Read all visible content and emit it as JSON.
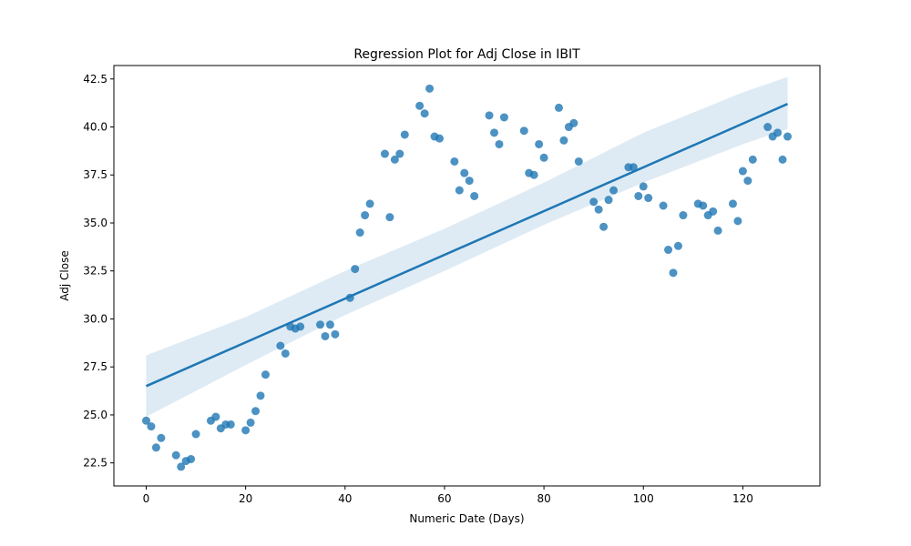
{
  "chart_data": {
    "type": "scatter",
    "title": "Regression Plot for Adj Close in IBIT",
    "xlabel": "Numeric Date (Days)",
    "ylabel": "Adj Close",
    "xlim": [
      -6.5,
      135.5
    ],
    "ylim": [
      21.3,
      43.2
    ],
    "xticks": [
      0,
      20,
      40,
      60,
      80,
      100,
      120
    ],
    "xtick_labels": [
      "0",
      "20",
      "40",
      "60",
      "80",
      "100",
      "120"
    ],
    "yticks": [
      22.5,
      25.0,
      27.5,
      30.0,
      32.5,
      35.0,
      37.5,
      40.0,
      42.5
    ],
    "ytick_labels": [
      "22.5",
      "25.0",
      "27.5",
      "30.0",
      "32.5",
      "35.0",
      "37.5",
      "40.0",
      "42.5"
    ],
    "grid": false,
    "point_color": "#1f77b4",
    "line_color": "#1f77b4",
    "band_color": "#1f77b4",
    "points": [
      [
        0,
        24.7
      ],
      [
        1,
        24.4
      ],
      [
        2,
        23.3
      ],
      [
        3,
        23.8
      ],
      [
        6,
        22.9
      ],
      [
        7,
        22.3
      ],
      [
        8,
        22.6
      ],
      [
        9,
        22.7
      ],
      [
        10,
        24.0
      ],
      [
        13,
        24.7
      ],
      [
        14,
        24.9
      ],
      [
        15,
        24.3
      ],
      [
        16,
        24.5
      ],
      [
        17,
        24.5
      ],
      [
        20,
        24.2
      ],
      [
        21,
        24.6
      ],
      [
        22,
        25.2
      ],
      [
        23,
        26.0
      ],
      [
        24,
        27.1
      ],
      [
        27,
        28.6
      ],
      [
        28,
        28.2
      ],
      [
        29,
        29.6
      ],
      [
        30,
        29.5
      ],
      [
        31,
        29.6
      ],
      [
        35,
        29.7
      ],
      [
        36,
        29.1
      ],
      [
        37,
        29.7
      ],
      [
        38,
        29.2
      ],
      [
        41,
        31.1
      ],
      [
        42,
        32.6
      ],
      [
        43,
        34.5
      ],
      [
        44,
        35.4
      ],
      [
        45,
        36.0
      ],
      [
        48,
        38.6
      ],
      [
        49,
        35.3
      ],
      [
        50,
        38.3
      ],
      [
        51,
        38.6
      ],
      [
        52,
        39.6
      ],
      [
        55,
        41.1
      ],
      [
        56,
        40.7
      ],
      [
        57,
        42.0
      ],
      [
        58,
        39.5
      ],
      [
        59,
        39.4
      ],
      [
        62,
        38.2
      ],
      [
        63,
        36.7
      ],
      [
        64,
        37.6
      ],
      [
        65,
        37.2
      ],
      [
        66,
        36.4
      ],
      [
        69,
        40.6
      ],
      [
        70,
        39.7
      ],
      [
        71,
        39.1
      ],
      [
        72,
        40.5
      ],
      [
        76,
        39.8
      ],
      [
        77,
        37.6
      ],
      [
        78,
        37.5
      ],
      [
        79,
        39.1
      ],
      [
        80,
        38.4
      ],
      [
        83,
        41.0
      ],
      [
        84,
        39.3
      ],
      [
        85,
        40.0
      ],
      [
        86,
        40.2
      ],
      [
        87,
        38.2
      ],
      [
        90,
        36.1
      ],
      [
        91,
        35.7
      ],
      [
        92,
        34.8
      ],
      [
        93,
        36.2
      ],
      [
        94,
        36.7
      ],
      [
        97,
        37.9
      ],
      [
        98,
        37.9
      ],
      [
        99,
        36.4
      ],
      [
        100,
        36.9
      ],
      [
        101,
        36.3
      ],
      [
        104,
        35.9
      ],
      [
        105,
        33.6
      ],
      [
        106,
        32.4
      ],
      [
        107,
        33.8
      ],
      [
        108,
        35.4
      ],
      [
        111,
        36.0
      ],
      [
        112,
        35.9
      ],
      [
        113,
        35.4
      ],
      [
        114,
        35.6
      ],
      [
        115,
        34.6
      ],
      [
        118,
        36.0
      ],
      [
        119,
        35.1
      ],
      [
        120,
        37.7
      ],
      [
        121,
        37.2
      ],
      [
        122,
        38.3
      ],
      [
        125,
        40.0
      ],
      [
        126,
        39.5
      ],
      [
        127,
        39.7
      ],
      [
        128,
        38.3
      ],
      [
        129,
        39.5
      ]
    ],
    "regression": {
      "x": [
        0,
        129
      ],
      "y": [
        26.5,
        41.2
      ]
    },
    "confidence_band": {
      "x": [
        0,
        20,
        40,
        60,
        80,
        100,
        120,
        129
      ],
      "lower": [
        24.9,
        27.6,
        30.2,
        32.5,
        34.9,
        37.1,
        39.1,
        39.9
      ],
      "upper": [
        28.1,
        30.1,
        32.5,
        34.7,
        37.1,
        39.7,
        41.8,
        42.6
      ]
    }
  }
}
